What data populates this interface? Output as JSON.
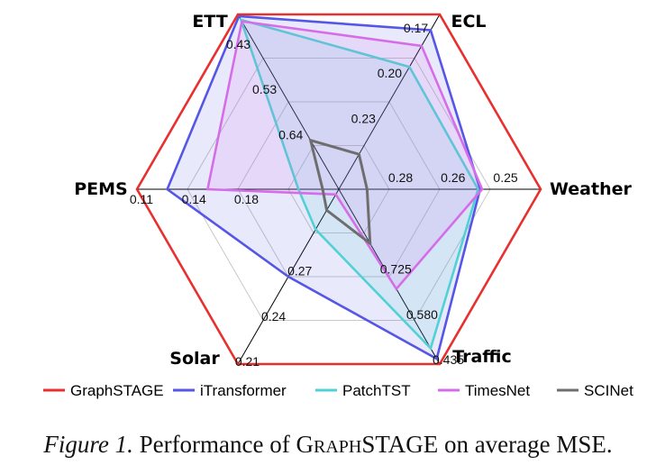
{
  "chart_data": {
    "type": "radar",
    "axes": [
      {
        "name": "ETT",
        "ticks": [
          "0.43",
          "0.53",
          "0.64"
        ]
      },
      {
        "name": "ECL",
        "ticks": [
          "0.17",
          "0.20",
          "0.23"
        ]
      },
      {
        "name": "Weather",
        "ticks": [
          "0.25",
          "0.26",
          "0.28"
        ]
      },
      {
        "name": "Traffic",
        "ticks": [
          "0.435",
          "0.580",
          "0.725"
        ]
      },
      {
        "name": "Solar",
        "ticks": [
          "0.21",
          "0.24",
          "0.27"
        ]
      },
      {
        "name": "PEMS",
        "ticks": [
          "0.11",
          "0.14",
          "0.18"
        ]
      }
    ],
    "series": [
      {
        "name": "GraphSTAGE",
        "color": "#e8302f",
        "fill": false,
        "r": [
          1.0,
          1.0,
          1.0,
          1.0,
          1.0,
          1.0
        ]
      },
      {
        "name": "iTransformer",
        "color": "#5656e6",
        "fill": true,
        "r": [
          0.99,
          0.91,
          0.7,
          0.97,
          0.5,
          0.85
        ]
      },
      {
        "name": "PatchTST",
        "color": "#50d2d4",
        "fill": true,
        "r": [
          0.97,
          0.7,
          0.69,
          0.91,
          0.23,
          0.2
        ]
      },
      {
        "name": "TimesNet",
        "color": "#d66de8",
        "fill": true,
        "r": [
          0.96,
          0.82,
          0.71,
          0.57,
          0.03,
          0.65
        ]
      },
      {
        "name": "SCINet",
        "color": "#6e6e6e",
        "fill": false,
        "r": [
          0.28,
          0.2,
          0.14,
          0.31,
          0.12,
          0.08
        ]
      }
    ]
  },
  "legend": [
    {
      "name": "GraphSTAGE",
      "color": "#e8302f"
    },
    {
      "name": "iTransformer",
      "color": "#5656e6"
    },
    {
      "name": "PatchTST",
      "color": "#50d2d4"
    },
    {
      "name": "TimesNet",
      "color": "#d66de8"
    },
    {
      "name": "SCINet",
      "color": "#6e6e6e"
    }
  ],
  "caption": {
    "figure_label": "Figure 1.",
    "text_before": "Performance of ",
    "model_parts": [
      "G",
      "RAPH",
      "STAGE"
    ],
    "text_after": " on average MSE."
  }
}
